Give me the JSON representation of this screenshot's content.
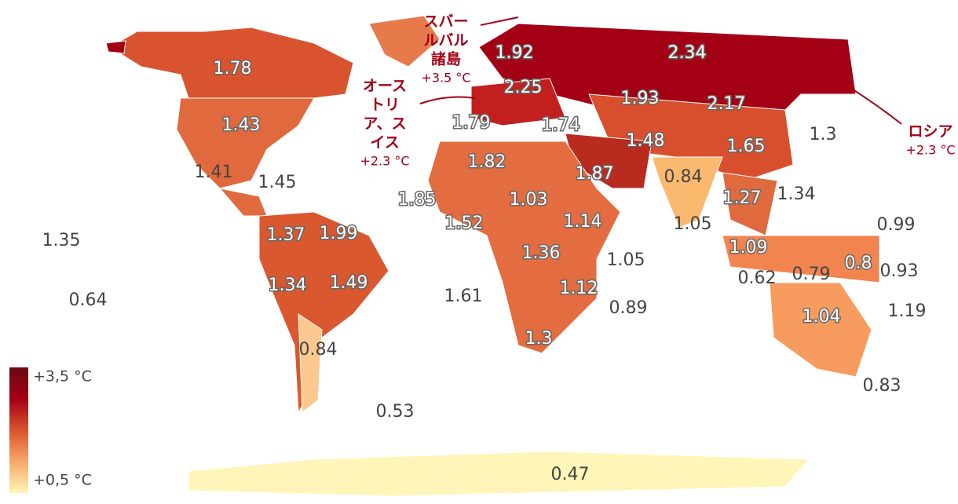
{
  "map": {
    "labels": [
      {
        "value": 1.78
      },
      {
        "value": 2.34
      },
      {
        "value": 1.92
      },
      {
        "value": 2.25
      },
      {
        "value": 1.93
      },
      {
        "value": 2.17
      },
      {
        "value": 1.43
      },
      {
        "value": 1.79
      },
      {
        "value": 1.74
      },
      {
        "value": 1.48
      },
      {
        "value": 1.65
      },
      {
        "value": 1.3
      },
      {
        "value": 1.82
      },
      {
        "value": 1.87
      },
      {
        "value": 1.41
      },
      {
        "value": 1.45
      },
      {
        "value": 0.84
      },
      {
        "value": 1.85
      },
      {
        "value": 1.03
      },
      {
        "value": 1.27
      },
      {
        "value": 1.34
      },
      {
        "value": 1.52
      },
      {
        "value": 1.14
      },
      {
        "value": 1.05
      },
      {
        "value": 0.99
      },
      {
        "value": 1.35
      },
      {
        "value": 1.37
      },
      {
        "value": 1.99
      },
      {
        "value": 1.09
      },
      {
        "value": 1.36
      },
      {
        "value": 1.05
      },
      {
        "value": 0.8
      },
      {
        "value": 0.62
      },
      {
        "value": 0.79
      },
      {
        "value": 0.93
      },
      {
        "value": 1.34
      },
      {
        "value": 1.49
      },
      {
        "value": 1.12
      },
      {
        "value": 1.61
      },
      {
        "value": 0.64
      },
      {
        "value": 0.89
      },
      {
        "value": 1.19
      },
      {
        "value": 1.04
      },
      {
        "value": 0.84
      },
      {
        "value": 1.3
      },
      {
        "value": 0.83
      },
      {
        "value": 0.53
      },
      {
        "value": 0.47
      }
    ],
    "annotations": [
      {
        "lines": [
          "スバー",
          "ルバル",
          "諸島"
        ],
        "value_text": "+3.5 °C"
      },
      {
        "lines": [
          "オース",
          "トリ",
          "ア、ス",
          "イス"
        ],
        "value_text": "+2.3 °C"
      },
      {
        "lines": [
          "ロシア"
        ],
        "value_text": "+2.3 °C"
      }
    ],
    "legend": {
      "colors": [
        "#fff5b8",
        "#f7a86a",
        "#d9532f",
        "#a30015",
        "#6b0a12"
      ],
      "ticks": [
        {
          "value": 3.5,
          "label": "+3,5 °C"
        },
        {
          "value": 0.5,
          "label": "+0,5 °C"
        }
      ]
    }
  }
}
